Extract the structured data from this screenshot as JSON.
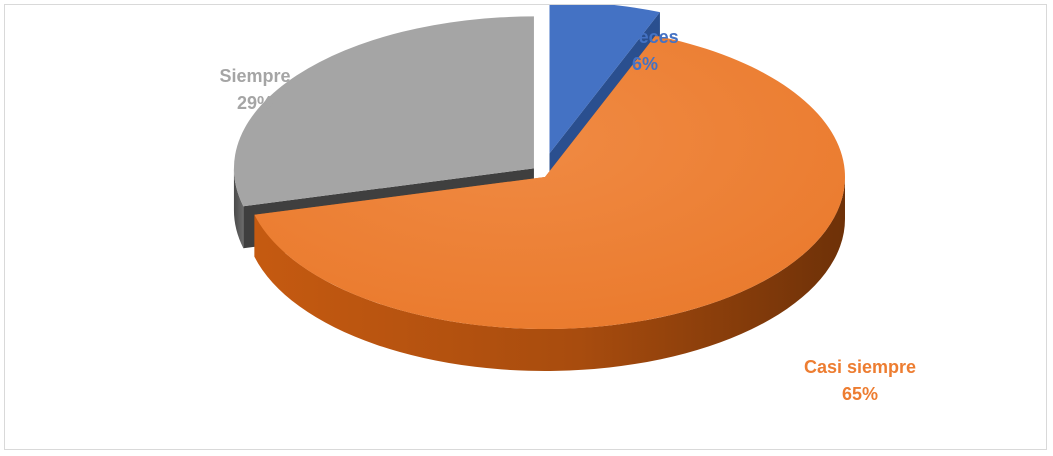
{
  "chart_data": {
    "type": "pie",
    "title": "",
    "slices": [
      {
        "name": "A veces",
        "percent_label": "6%",
        "value": 6,
        "color": "#4472c4"
      },
      {
        "name": "Casi siempre",
        "percent_label": "65%",
        "value": 65,
        "color": "#ed7d31"
      },
      {
        "name": "Siempre",
        "percent_label": "29%",
        "value": 29,
        "color": "#a5a5a5"
      }
    ],
    "style": "3d-exploded",
    "legend": "none"
  }
}
